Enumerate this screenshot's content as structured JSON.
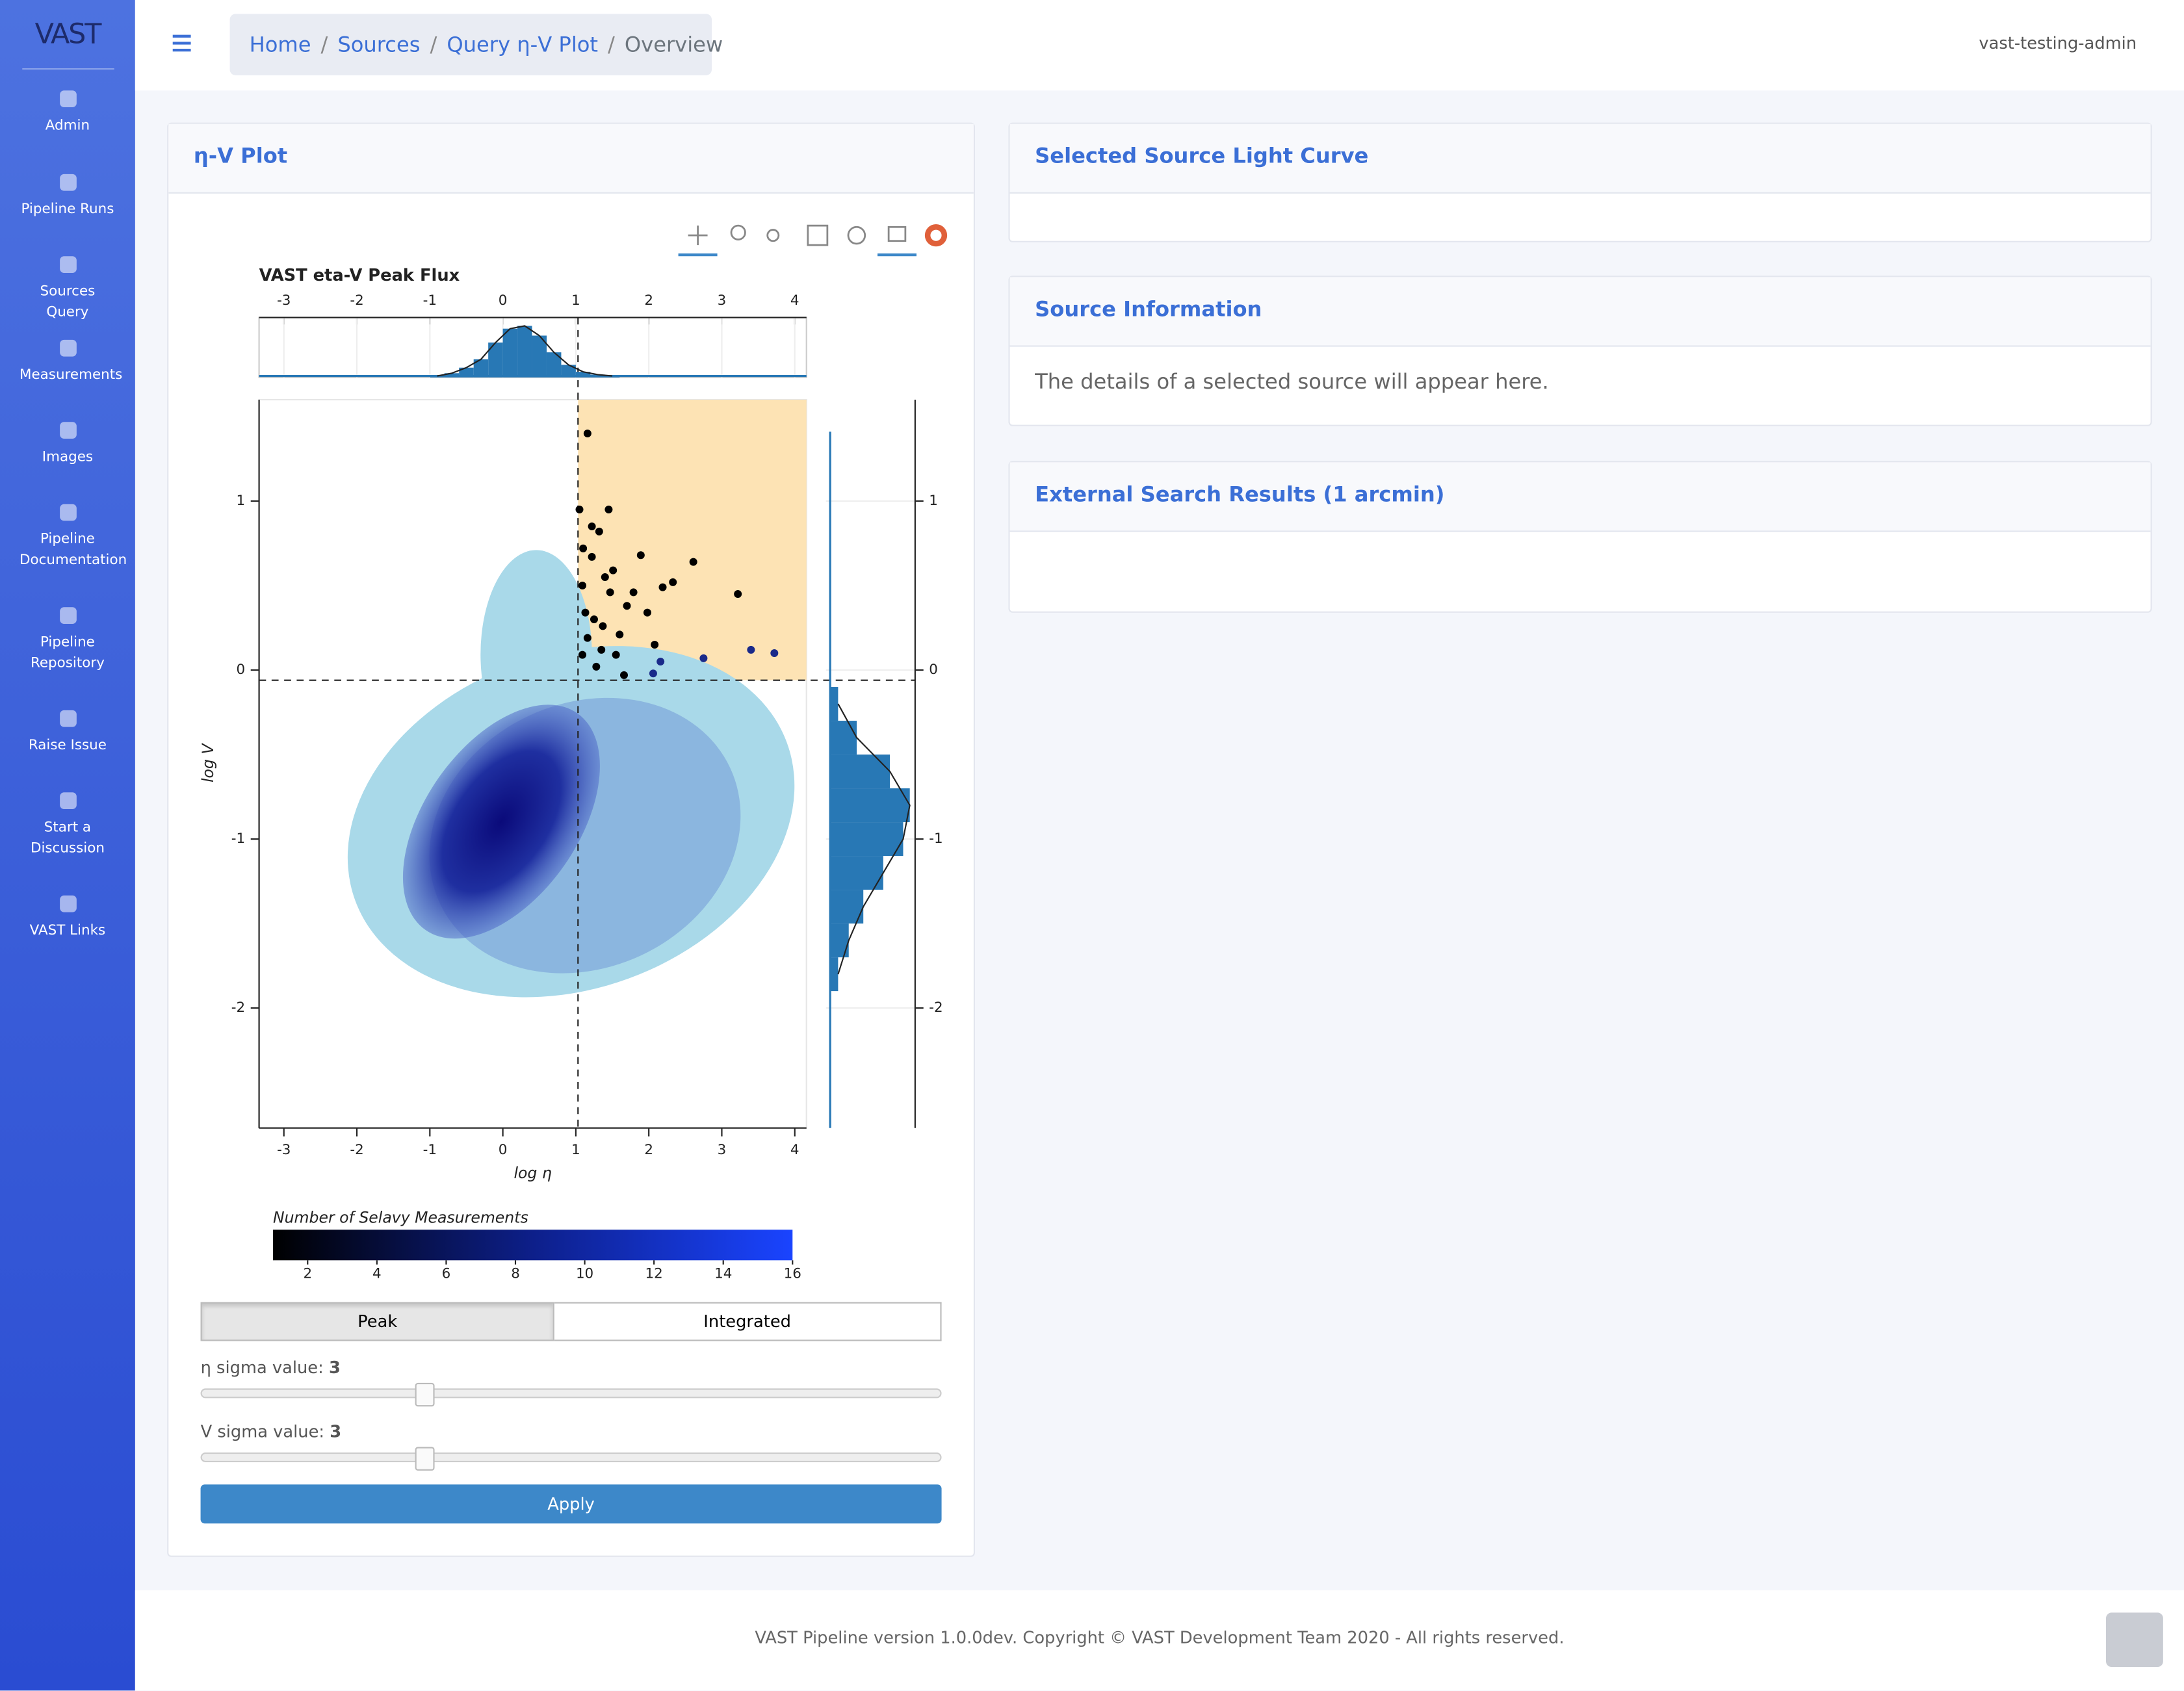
{
  "sidebar": {
    "logo": "VAST",
    "items": [
      "Admin",
      "Pipeline Runs",
      "Sources Query",
      "Measurements",
      "Images",
      "Pipeline Documentation",
      "Pipeline Repository",
      "Raise Issue",
      "Start a Discussion",
      "VAST Links"
    ]
  },
  "topbar": {
    "breadcrumb": [
      "Home",
      "Sources",
      "Query η-V Plot",
      "Overview"
    ],
    "user": "vast-testing-admin"
  },
  "plot_card": {
    "title": "η-V Plot",
    "flux_buttons": [
      "Peak",
      "Integrated"
    ],
    "eta_sigma": {
      "label": "η sigma value:",
      "value": 3
    },
    "v_sigma": {
      "label": "V sigma value:",
      "value": 3
    },
    "apply": "Apply"
  },
  "chart_data": {
    "type": "scatter",
    "title": "VAST eta-V Peak Flux",
    "xlabel": "log η",
    "ylabel": "log V",
    "xlim": [
      -3.34,
      4.16
    ],
    "ylim": [
      -2.71,
      1.6
    ],
    "xticks": [
      -3,
      -2,
      -1,
      0,
      1,
      2,
      3,
      4
    ],
    "yticks": [
      -2,
      -1,
      0,
      1
    ],
    "eta_threshold": 1.03,
    "v_threshold": -0.06,
    "series": [
      {
        "color": "#000000",
        "x": [
          1.16,
          1.05,
          1.45,
          1.22,
          1.32,
          1.89,
          2.61,
          2.33,
          2.19,
          3.22,
          1.51,
          1.7,
          1.13,
          1.37,
          1.6,
          1.98,
          2.08,
          1.09,
          1.28,
          1.66,
          1.22,
          1.09,
          1.47,
          1.79,
          1.16,
          1.55,
          1.25,
          1.4,
          1.1,
          1.35
        ],
        "y": [
          1.4,
          0.95,
          0.95,
          0.85,
          0.82,
          0.68,
          0.64,
          0.52,
          0.49,
          0.45,
          0.59,
          0.38,
          0.34,
          0.26,
          0.21,
          0.34,
          0.15,
          0.09,
          0.02,
          -0.03,
          0.67,
          0.5,
          0.46,
          0.46,
          0.19,
          0.09,
          0.3,
          0.55,
          0.72,
          0.12
        ]
      },
      {
        "color": "#1a2a8a",
        "x": [
          3.4,
          3.72,
          2.75,
          2.16,
          2.06
        ],
        "y": [
          0.12,
          0.1,
          0.07,
          0.05,
          -0.02
        ]
      }
    ],
    "top_histogram": {
      "color": "#2878b5",
      "ylim": [
        0,
        43
      ],
      "bins": [
        -1.0,
        -0.8,
        -0.6,
        -0.4,
        -0.2,
        0.0,
        0.2,
        0.4,
        0.6,
        0.8,
        1.0,
        1.2,
        1.4,
        1.6
      ],
      "counts": [
        1,
        3,
        7,
        13,
        25,
        35,
        37,
        30,
        18,
        9,
        4,
        2,
        1
      ]
    },
    "right_histogram": {
      "color": "#2878b5",
      "xlim": [
        0,
        64
      ],
      "bins": [
        -1.9,
        -1.7,
        -1.5,
        -1.3,
        -1.1,
        -0.9,
        -0.7,
        -0.5,
        -0.3,
        -0.1
      ],
      "counts": [
        6,
        14,
        25,
        40,
        55,
        60,
        45,
        20,
        6
      ]
    },
    "colorbar": {
      "label": "Number of Selavy Measurements",
      "lim": [
        1,
        16
      ],
      "ticks": [
        2,
        4,
        6,
        8,
        10,
        12,
        14,
        16
      ]
    }
  },
  "cards": [
    {
      "title": "Selected Source Light Curve"
    },
    {
      "title": "Source Information",
      "body": "The details of a selected source will appear here."
    },
    {
      "title": "External Search Results (1 arcmin)"
    }
  ],
  "footer": "VAST Pipeline version 1.0.0dev. Copyright © VAST Development Team 2020 - All rights reserved."
}
